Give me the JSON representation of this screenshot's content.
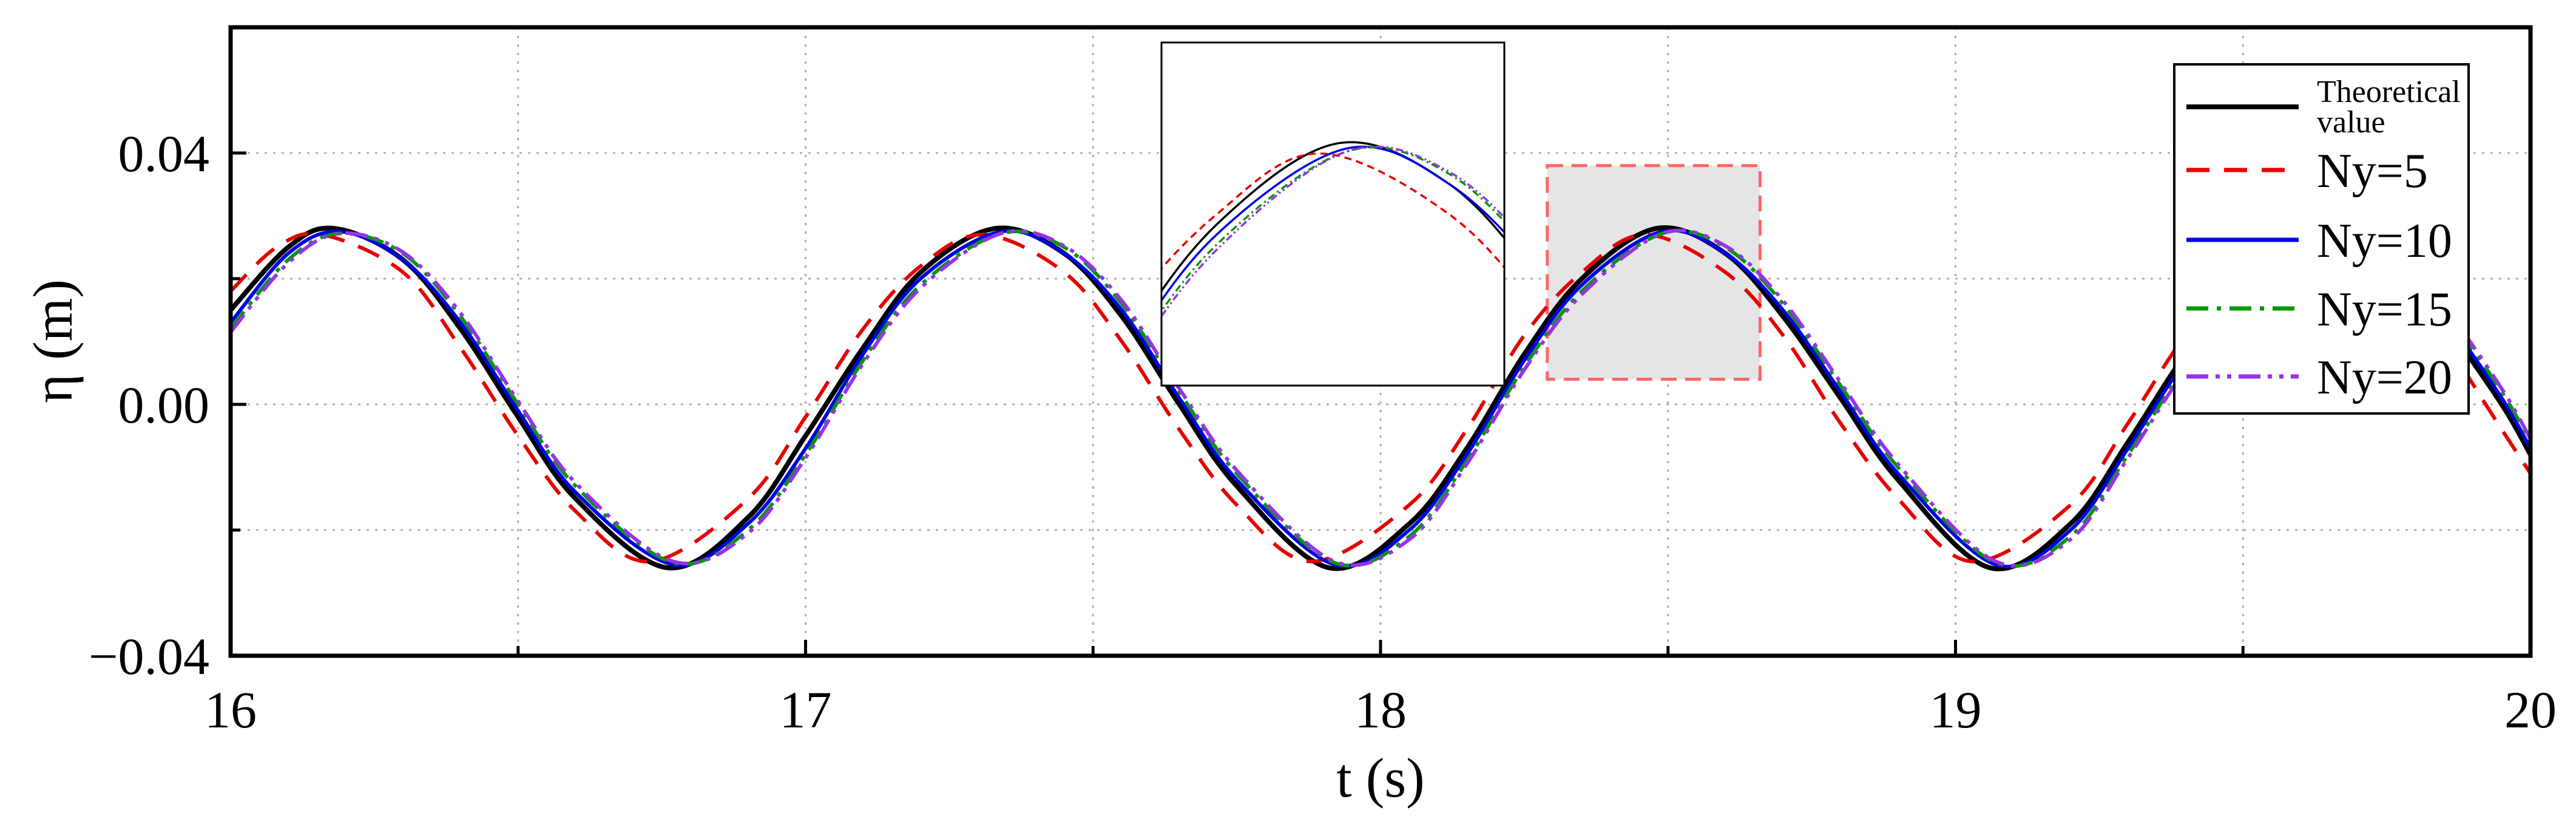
{
  "chart_data": {
    "type": "line",
    "title": "",
    "xlabel": "t (s)",
    "ylabel": "η (m)",
    "xlim": [
      16,
      20
    ],
    "ylim": [
      -0.04,
      0.06
    ],
    "grid": true,
    "legend_position": "top-right",
    "x_ticks": [
      {
        "value": 16,
        "label": "16"
      },
      {
        "value": 17,
        "label": "17"
      },
      {
        "value": 18,
        "label": "18"
      },
      {
        "value": 19,
        "label": "19"
      },
      {
        "value": 20,
        "label": "20"
      }
    ],
    "y_ticks": [
      {
        "value": -0.04,
        "label": "−0.04"
      },
      {
        "value": 0.0,
        "label": "0.00"
      },
      {
        "value": 0.04,
        "label": "0.04"
      }
    ],
    "series": [
      {
        "name": "Theoretical value",
        "color": "#000000",
        "dash": "solid",
        "x": [
          16.0,
          16.1,
          16.18,
          16.3,
          16.4,
          16.5,
          16.6,
          16.76,
          16.9,
          17.0,
          17.1,
          17.2,
          17.33,
          17.45,
          17.55,
          17.65,
          17.75,
          17.91,
          18.05,
          18.15,
          18.25,
          18.35,
          18.48,
          18.6,
          18.7,
          18.8,
          18.9,
          19.06,
          19.2,
          19.3,
          19.4,
          19.5,
          19.63,
          19.75,
          19.85,
          19.95,
          20.0
        ],
        "y": [
          0.015,
          0.025,
          0.028,
          0.023,
          0.012,
          -0.002,
          -0.015,
          -0.026,
          -0.018,
          -0.005,
          0.009,
          0.021,
          0.028,
          0.024,
          0.014,
          0.0,
          -0.013,
          -0.026,
          -0.019,
          -0.007,
          0.008,
          0.02,
          0.028,
          0.024,
          0.014,
          0.001,
          -0.012,
          -0.026,
          -0.019,
          -0.006,
          0.008,
          0.019,
          0.028,
          0.024,
          0.013,
          0.0,
          -0.008
        ]
      },
      {
        "name": "Ny=5",
        "color": "#e60000",
        "dash": "dashed",
        "x": [
          16.0,
          16.08,
          16.16,
          16.3,
          16.4,
          16.5,
          16.6,
          16.73,
          16.9,
          17.0,
          17.1,
          17.2,
          17.31,
          17.45,
          17.55,
          17.65,
          17.75,
          17.88,
          18.05,
          18.15,
          18.25,
          18.35,
          18.46,
          18.6,
          18.7,
          18.8,
          18.9,
          19.03,
          19.2,
          19.3,
          19.4,
          19.5,
          19.61,
          19.75,
          19.85,
          19.95,
          20.0
        ],
        "y": [
          0.018,
          0.025,
          0.027,
          0.021,
          0.009,
          -0.005,
          -0.017,
          -0.025,
          -0.015,
          -0.002,
          0.012,
          0.022,
          0.027,
          0.021,
          0.01,
          -0.004,
          -0.016,
          -0.025,
          -0.016,
          -0.004,
          0.011,
          0.021,
          0.027,
          0.021,
          0.011,
          -0.003,
          -0.015,
          -0.025,
          -0.016,
          -0.003,
          0.011,
          0.021,
          0.027,
          0.021,
          0.01,
          -0.004,
          -0.011
        ]
      },
      {
        "name": "Ny=10",
        "color": "#0000e6",
        "dash": "solid",
        "x": [
          16.0,
          16.1,
          16.19,
          16.3,
          16.4,
          16.5,
          16.6,
          16.77,
          16.9,
          17.0,
          17.1,
          17.2,
          17.34,
          17.45,
          17.55,
          17.65,
          17.75,
          17.92,
          18.05,
          18.15,
          18.25,
          18.35,
          18.49,
          18.6,
          18.7,
          18.8,
          18.9,
          19.07,
          19.2,
          19.3,
          19.4,
          19.5,
          19.64,
          19.75,
          19.85,
          19.95,
          20.0
        ],
        "y": [
          0.013,
          0.024,
          0.0275,
          0.023,
          0.013,
          -0.001,
          -0.014,
          -0.0255,
          -0.019,
          -0.007,
          0.008,
          0.02,
          0.0275,
          0.024,
          0.015,
          0.001,
          -0.012,
          -0.0255,
          -0.02,
          -0.008,
          0.007,
          0.019,
          0.0275,
          0.024,
          0.015,
          0.002,
          -0.011,
          -0.0255,
          -0.02,
          -0.007,
          0.007,
          0.018,
          0.0275,
          0.024,
          0.014,
          0.001,
          -0.007
        ]
      },
      {
        "name": "Ny=15",
        "color": "#009900",
        "dash": "dashdot",
        "x": [
          16.0,
          16.1,
          16.19,
          16.3,
          16.4,
          16.5,
          16.6,
          16.77,
          16.9,
          17.0,
          17.1,
          17.2,
          17.34,
          17.45,
          17.55,
          17.65,
          17.75,
          17.92,
          18.05,
          18.15,
          18.25,
          18.35,
          18.49,
          18.6,
          18.7,
          18.8,
          18.9,
          19.07,
          19.2,
          19.3,
          19.4,
          19.5,
          19.64,
          19.75,
          19.85,
          19.95,
          20.0
        ],
        "y": [
          0.012,
          0.023,
          0.0272,
          0.024,
          0.014,
          0.0,
          -0.013,
          -0.0252,
          -0.02,
          -0.008,
          0.007,
          0.019,
          0.0272,
          0.025,
          0.016,
          0.002,
          -0.011,
          -0.0252,
          -0.021,
          -0.009,
          0.006,
          0.018,
          0.0272,
          0.025,
          0.016,
          0.003,
          -0.01,
          -0.0252,
          -0.021,
          -0.008,
          0.006,
          0.017,
          0.0272,
          0.025,
          0.015,
          0.002,
          -0.006
        ]
      },
      {
        "name": "Ny=20",
        "color": "#9933e6",
        "dash": "dashdotdot",
        "x": [
          16.0,
          16.1,
          16.19,
          16.3,
          16.4,
          16.5,
          16.6,
          16.77,
          16.9,
          17.0,
          17.1,
          17.2,
          17.34,
          17.45,
          17.55,
          17.65,
          17.75,
          17.92,
          18.05,
          18.15,
          18.25,
          18.35,
          18.49,
          18.6,
          18.7,
          18.8,
          18.9,
          19.07,
          19.2,
          19.3,
          19.4,
          19.5,
          19.64,
          19.75,
          19.85,
          19.95,
          20.0
        ],
        "y": [
          0.0115,
          0.0225,
          0.0272,
          0.0242,
          0.0145,
          0.0005,
          -0.0125,
          -0.025,
          -0.0205,
          -0.0085,
          0.0065,
          0.0185,
          0.0272,
          0.0252,
          0.0165,
          0.0025,
          -0.0105,
          -0.025,
          -0.0215,
          -0.0095,
          0.0055,
          0.0175,
          0.0272,
          0.0252,
          0.0165,
          0.0035,
          -0.0095,
          -0.025,
          -0.0215,
          -0.0085,
          0.0055,
          0.0165,
          0.0272,
          0.0252,
          0.0155,
          0.0025,
          -0.0055
        ]
      }
    ],
    "highlight_box": {
      "x_range": [
        18.29,
        18.66
      ],
      "y_range": [
        0.004,
        0.038
      ],
      "fill": "#e5e5e5",
      "stroke": "#ff6666"
    },
    "inset": {
      "x_range": [
        18.29,
        18.66
      ],
      "y_range": [
        0.004,
        0.038
      ],
      "border": "#000000"
    }
  }
}
